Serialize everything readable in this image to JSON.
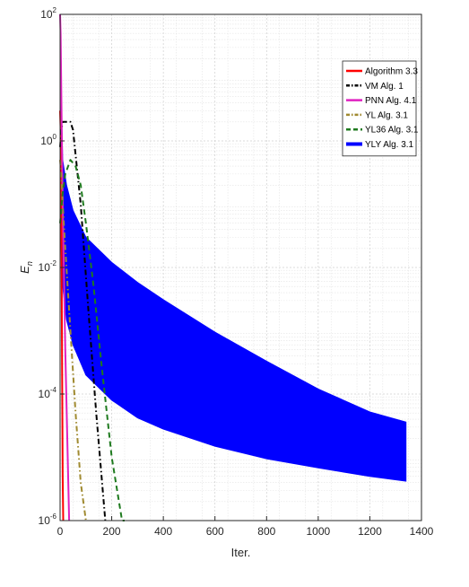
{
  "chart_data": {
    "type": "line",
    "xlabel": "Iter.",
    "ylabel": "E",
    "ylabel_subscript": "n",
    "xlim": [
      0,
      1400
    ],
    "ylim": [
      1e-06,
      100.0
    ],
    "yscale": "log",
    "grid": true,
    "minor_grid": true,
    "legend_position": "top-right",
    "x_ticks": [
      0,
      200,
      400,
      600,
      800,
      1000,
      1200,
      1400
    ],
    "y_ticks": [
      {
        "value": 1e-06,
        "base": "10",
        "exp": "-6"
      },
      {
        "value": 0.0001,
        "base": "10",
        "exp": "-4"
      },
      {
        "value": 0.01,
        "base": "10",
        "exp": "-2"
      },
      {
        "value": 1,
        "base": "10",
        "exp": "0"
      },
      {
        "value": 100,
        "base": "10",
        "exp": "2"
      }
    ],
    "series": [
      {
        "name": "Algorithm 3.3",
        "color": "#ff0000",
        "style": "solid",
        "width": 2,
        "x": [
          0,
          2,
          4,
          6,
          8,
          10,
          12
        ],
        "y": [
          3,
          1.5,
          0.2,
          0.01,
          0.0002,
          5e-06,
          1e-06
        ]
      },
      {
        "name": "VM Alg. 1",
        "color": "#000000",
        "style": "dashdot",
        "width": 2,
        "x": [
          0,
          5,
          10,
          20,
          40,
          50,
          80,
          110,
          140,
          175
        ],
        "y": [
          0.8,
          1.5,
          2,
          2,
          2,
          1.5,
          0.1,
          0.002,
          5e-05,
          1e-06
        ]
      },
      {
        "name": "PNN Alg. 4.1",
        "color": "#e020c0",
        "style": "solid",
        "width": 2,
        "x": [
          0,
          2,
          5,
          10,
          20,
          35
        ],
        "y": [
          100,
          50,
          5,
          0.1,
          0.0005,
          1e-06
        ]
      },
      {
        "name": "YL Alg. 3.1",
        "color": "#a08a30",
        "style": "dashdot",
        "width": 2,
        "x": [
          0,
          5,
          10,
          20,
          40,
          60,
          80,
          100
        ],
        "y": [
          0.5,
          0.3,
          0.1,
          0.02,
          0.001,
          5e-05,
          4e-06,
          1e-06
        ]
      },
      {
        "name": "YL36 Alg. 3.1",
        "color": "#1e7a1e",
        "style": "dashed",
        "width": 2,
        "x": [
          0,
          10,
          20,
          40,
          60,
          80,
          100,
          130,
          160,
          200,
          240,
          250
        ],
        "y": [
          0.05,
          0.15,
          0.3,
          0.5,
          0.4,
          0.2,
          0.05,
          0.005,
          0.0003,
          1e-05,
          1e-06,
          1e-06
        ]
      },
      {
        "name": "YLY Alg. 3.1",
        "color": "#0000ff",
        "style": "band",
        "width": 2,
        "x": [
          0,
          10,
          25,
          50,
          100,
          200,
          300,
          400,
          600,
          800,
          1000,
          1200,
          1340
        ],
        "upper": [
          20,
          0.5,
          0.2,
          0.08,
          0.03,
          0.012,
          0.0058,
          0.0031,
          0.00095,
          0.00033,
          0.00012,
          5.2e-05,
          3.6e-05
        ],
        "lower": [
          0.05,
          0.005,
          0.0015,
          0.0006,
          0.0002,
          8e-05,
          4.2e-05,
          2.8e-05,
          1.5e-05,
          9.5e-06,
          6.8e-06,
          5e-06,
          4.2e-06
        ]
      }
    ]
  }
}
